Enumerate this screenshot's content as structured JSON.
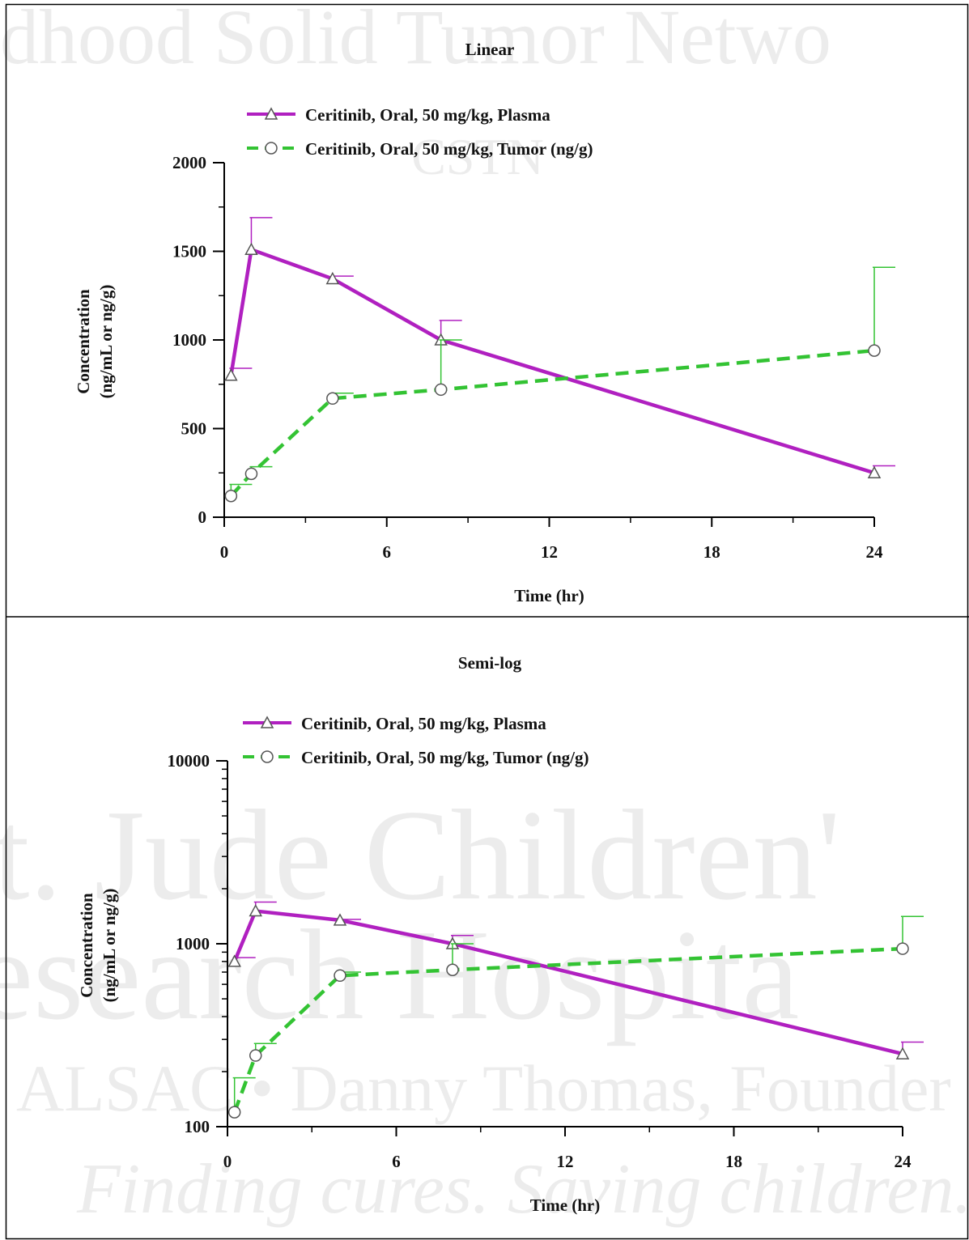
{
  "watermark": [
    "dhood Solid Tumor Netwo",
    "CSTN",
    "t. Jude Children'",
    "esearch Hospita",
    "ALSAC • Danny Thomas, Founder",
    "Finding cures. Saving children."
  ],
  "chart_data": [
    {
      "type": "line",
      "title": "Linear",
      "xlabel": "Time (hr)",
      "ylabel": [
        "Concentration",
        "(ng/mL or ng/g)"
      ],
      "x": [
        0.25,
        1,
        4,
        8,
        24
      ],
      "xlim": [
        0,
        24
      ],
      "xticks": [
        0,
        6,
        12,
        18,
        24
      ],
      "xminorticks": [
        3,
        9,
        15,
        21
      ],
      "ylim": [
        0,
        2000
      ],
      "yticks": [
        0,
        500,
        1000,
        1500,
        2000
      ],
      "yminorticks": [
        250,
        750,
        1250,
        1750
      ],
      "yscale": "linear",
      "series": [
        {
          "name": "Ceritinib, Oral, 50 mg/kg, Plasma",
          "color": "#b020c0",
          "marker": "triangle",
          "dash": false,
          "values": [
            800,
            1510,
            1345,
            1000,
            250
          ],
          "errors": [
            40,
            180,
            15,
            110,
            40
          ]
        },
        {
          "name": "Ceritinib, Oral, 50 mg/kg, Tumor (ng/g)",
          "color": "#33c333",
          "marker": "circle",
          "dash": true,
          "values": [
            120,
            245,
            670,
            720,
            940
          ],
          "errors": [
            65,
            40,
            30,
            280,
            470
          ]
        }
      ]
    },
    {
      "type": "line",
      "title": "Semi-log",
      "xlabel": "Time (hr)",
      "ylabel": [
        "Concentration",
        "(ng/mL or ng/g)"
      ],
      "x": [
        0.25,
        1,
        4,
        8,
        24
      ],
      "xlim": [
        0,
        24
      ],
      "xticks": [
        0,
        6,
        12,
        18,
        24
      ],
      "xminorticks": [
        3,
        9,
        15,
        21
      ],
      "ylim": [
        100,
        10000
      ],
      "yticks": [
        100,
        1000,
        10000
      ],
      "yminorticks": [
        200,
        300,
        400,
        500,
        600,
        700,
        800,
        900,
        2000,
        3000,
        4000,
        5000,
        6000,
        7000,
        8000,
        9000
      ],
      "yscale": "log",
      "series": [
        {
          "name": "Ceritinib, Oral, 50 mg/kg, Plasma",
          "color": "#b020c0",
          "marker": "triangle",
          "dash": false,
          "values": [
            800,
            1510,
            1345,
            1000,
            250
          ],
          "errors": [
            40,
            180,
            15,
            110,
            40
          ]
        },
        {
          "name": "Ceritinib, Oral, 50 mg/kg, Tumor (ng/g)",
          "color": "#33c333",
          "marker": "circle",
          "dash": true,
          "values": [
            120,
            245,
            670,
            720,
            940
          ],
          "errors": [
            65,
            40,
            30,
            280,
            470
          ]
        }
      ]
    }
  ]
}
